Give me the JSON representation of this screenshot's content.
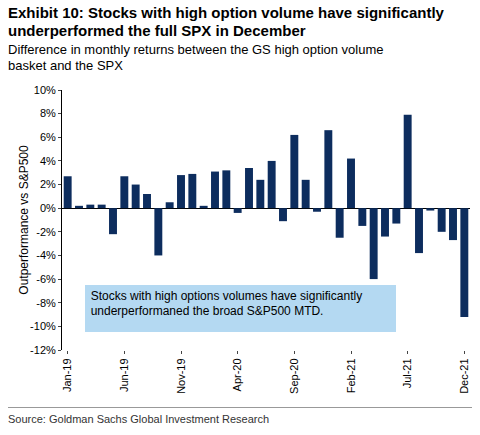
{
  "chart_data": {
    "type": "bar",
    "title": "Exhibit 10: Stocks with high option volume have significantly underperformed the full SPX in December",
    "subtitle": "Difference in monthly returns between the GS high option volume basket and the SPX",
    "y_label": "Outperformance vs S&P500",
    "annotation": "Stocks with high options volumes have significantly underperformaned the broad S&P500 MTD.",
    "source": "Source: Goldman Sachs Global Investment Research",
    "categories": [
      "Jan-19",
      null,
      null,
      null,
      null,
      "Jun-19",
      null,
      null,
      null,
      null,
      "Nov-19",
      null,
      null,
      null,
      null,
      "Apr-20",
      null,
      null,
      null,
      null,
      "Sep-20",
      null,
      null,
      null,
      null,
      "Feb-21",
      null,
      null,
      null,
      null,
      "Jul-21",
      null,
      null,
      null,
      null,
      "Dec-21"
    ],
    "values": [
      2.7,
      0.2,
      0.3,
      0.3,
      -2.2,
      2.7,
      2.0,
      1.2,
      -4.0,
      0.5,
      2.8,
      2.9,
      0.2,
      3.1,
      3.2,
      -0.4,
      3.4,
      2.4,
      4.0,
      -1.1,
      6.2,
      2.4,
      -0.3,
      6.6,
      -2.5,
      4.2,
      -1.5,
      -6.0,
      -2.4,
      -1.3,
      7.9,
      -3.8,
      -0.2,
      -2.0,
      -2.7,
      -9.2
    ],
    "color": "#0d2d5e",
    "ylim": [
      -12,
      10
    ],
    "yticks": [
      {
        "value": -12,
        "label": "-12%"
      },
      {
        "value": -10,
        "label": "-10%"
      },
      {
        "value": -8,
        "label": "-8%"
      },
      {
        "value": -6,
        "label": "-6%"
      },
      {
        "value": -4,
        "label": "-4%"
      },
      {
        "value": -2,
        "label": "-2%"
      },
      {
        "value": 0,
        "label": "0%"
      },
      {
        "value": 2,
        "label": "2%"
      },
      {
        "value": 4,
        "label": "4%"
      },
      {
        "value": 6,
        "label": "6%"
      },
      {
        "value": 8,
        "label": "8%"
      },
      {
        "value": 10,
        "label": "10%"
      }
    ],
    "grid": false
  }
}
